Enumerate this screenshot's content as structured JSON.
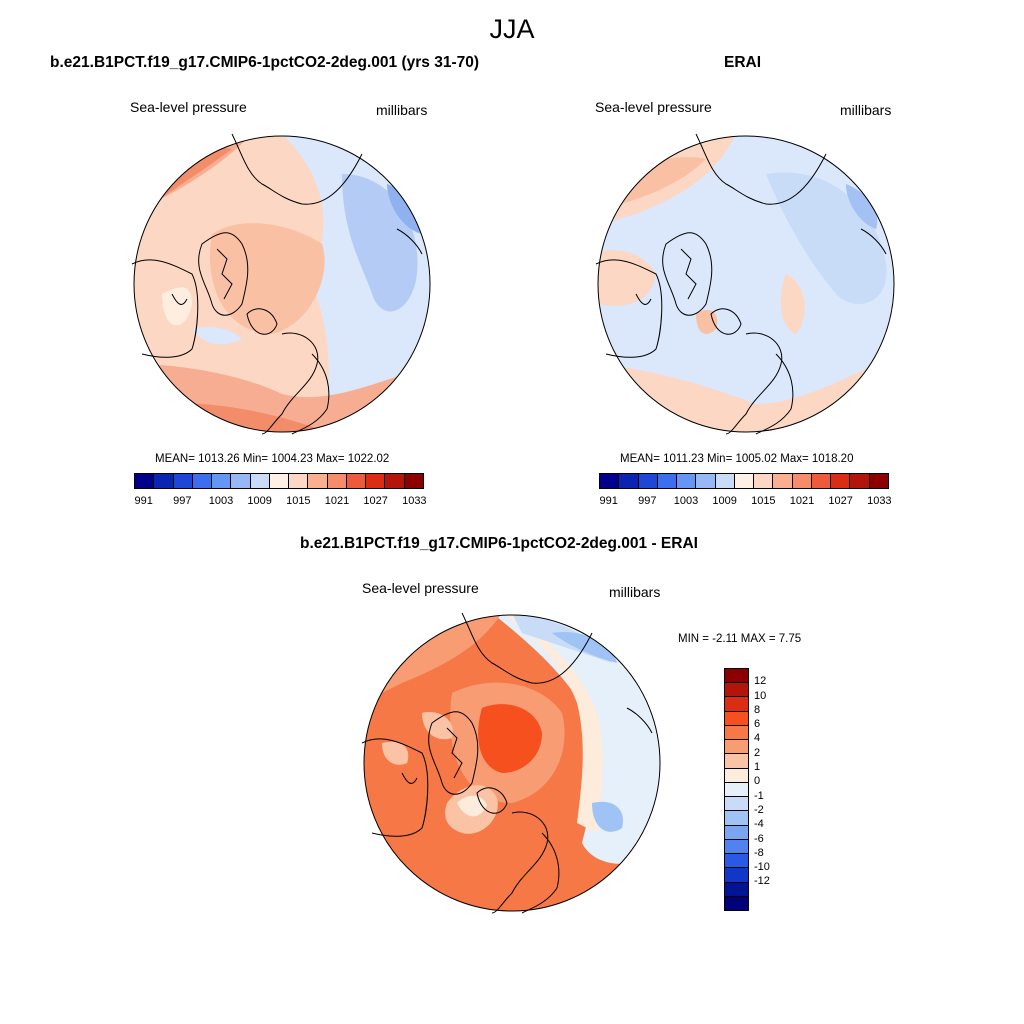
{
  "page": {
    "title": "JJA"
  },
  "panels": {
    "model": {
      "title": "b.e21.B1PCT.f19_g17.CMIP6-1pctCO2-2deg.001 (yrs 31-70)",
      "variable": "Sea-level pressure",
      "units": "millibars",
      "stats": "MEAN= 1013.26  Min= 1004.23  Max= 1022.02",
      "mean": 1013.26,
      "min": 1004.23,
      "max": 1022.02
    },
    "obs": {
      "title": "ERAI",
      "variable": "Sea-level pressure",
      "units": "millibars",
      "stats": "MEAN= 1011.23  Min= 1005.02  Max= 1018.20",
      "mean": 1011.23,
      "min": 1005.02,
      "max": 1018.2
    },
    "diff": {
      "title": "b.e21.B1PCT.f19_g17.CMIP6-1pctCO2-2deg.001 - ERAI",
      "variable": "Sea-level pressure",
      "units": "millibars",
      "stats": "MIN =  -2.11 MAX =   7.75",
      "min": -2.11,
      "max": 7.75
    }
  },
  "colorbars": {
    "abs": {
      "colors": [
        "#00008c",
        "#0a24b4",
        "#1e46d8",
        "#3c6ef0",
        "#6496f5",
        "#96b9f5",
        "#c8dcf8",
        "#fff0e6",
        "#fcd7c3",
        "#faaf91",
        "#f68c69",
        "#f05a3c",
        "#dc2d14",
        "#b4140a",
        "#8c0000"
      ],
      "tick_labels": [
        "991",
        "997",
        "1003",
        "1009",
        "1015",
        "1021",
        "1027",
        "1033"
      ]
    },
    "diff": {
      "colors": [
        "#8c0000",
        "#b4140a",
        "#dc2d14",
        "#f5501e",
        "#f57846",
        "#f89c73",
        "#fbc3a5",
        "#fdebdc",
        "#e6f0fa",
        "#c8dcf8",
        "#a0c3f5",
        "#7aa5f0",
        "#5082f0",
        "#285ae6",
        "#0f37c8",
        "#001496",
        "#000078"
      ],
      "tick_labels": [
        "12",
        "10",
        "8",
        "6",
        "4",
        "2",
        "1",
        "0",
        "-1",
        "-2",
        "-4",
        "-6",
        "-8",
        "-10",
        "-12"
      ]
    }
  }
}
